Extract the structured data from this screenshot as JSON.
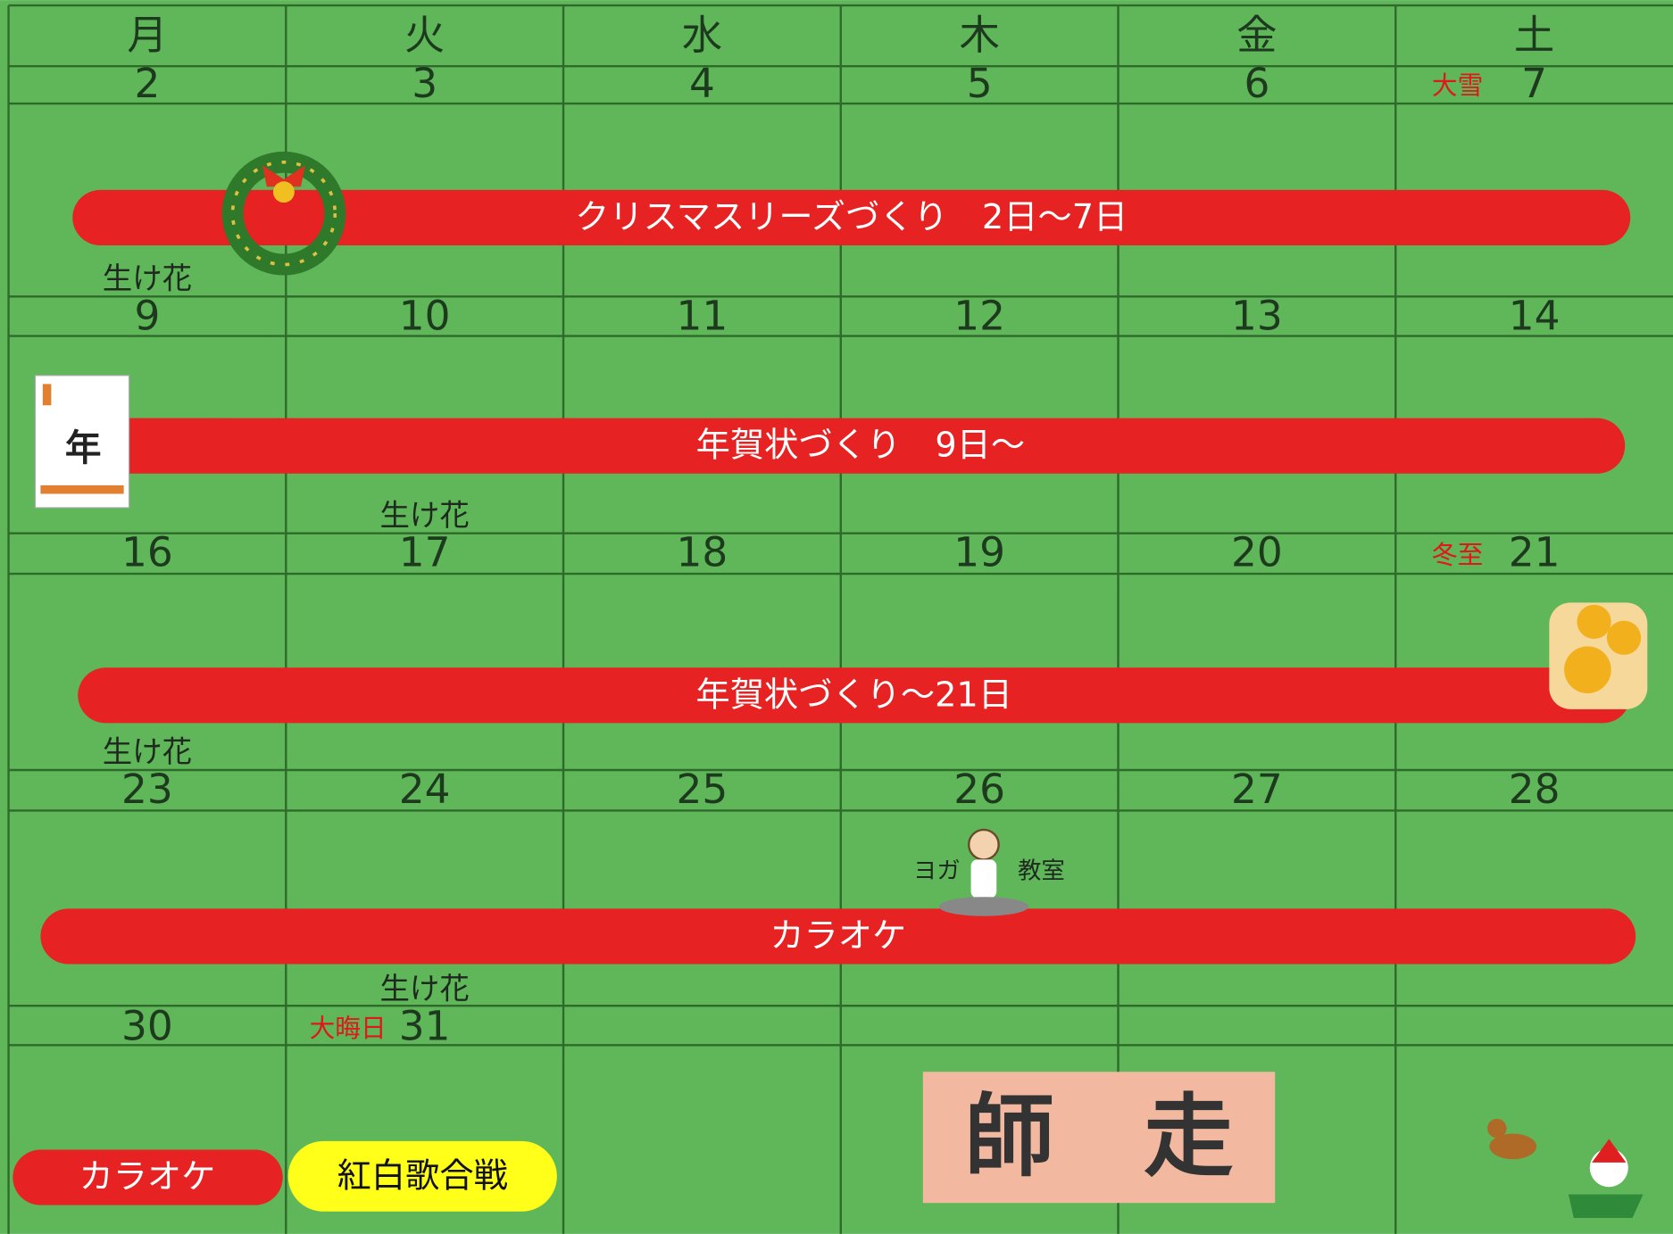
{
  "weekdays": [
    "月",
    "火",
    "水",
    "木",
    "金",
    "土"
  ],
  "weeks": [
    {
      "days": [
        {
          "date": 2
        },
        {
          "date": 3
        },
        {
          "date": 4
        },
        {
          "date": 5
        },
        {
          "date": 6
        },
        {
          "date": 7,
          "note": "大雪"
        }
      ]
    },
    {
      "days": [
        {
          "date": 9,
          "above": "生け花"
        },
        {
          "date": 10
        },
        {
          "date": 11
        },
        {
          "date": 12
        },
        {
          "date": 13
        },
        {
          "date": 14
        }
      ]
    },
    {
      "days": [
        {
          "date": 16
        },
        {
          "date": 17,
          "above": "生け花"
        },
        {
          "date": 18
        },
        {
          "date": 19
        },
        {
          "date": 20
        },
        {
          "date": 21,
          "note": "冬至"
        }
      ]
    },
    {
      "days": [
        {
          "date": 23,
          "above": "生け花"
        },
        {
          "date": 24
        },
        {
          "date": 25
        },
        {
          "date": 26
        },
        {
          "date": 27
        },
        {
          "date": 28
        }
      ]
    },
    {
      "days": [
        {
          "date": 30
        },
        {
          "date": 31,
          "above": "生け花",
          "note": "大晦日"
        }
      ]
    }
  ],
  "events": [
    {
      "label": "クリスマスリーズづくり　2日～7日"
    },
    {
      "label": "年賀状づくり　9日～"
    },
    {
      "label": "年賀状づくり～21日"
    },
    {
      "label": "カラオケ"
    }
  ],
  "yoga": {
    "left": "ヨガ",
    "right": "教室"
  },
  "legend": [
    {
      "label": "カラオケ"
    },
    {
      "label": "紅白歌合戦"
    }
  ],
  "title": "師　走"
}
